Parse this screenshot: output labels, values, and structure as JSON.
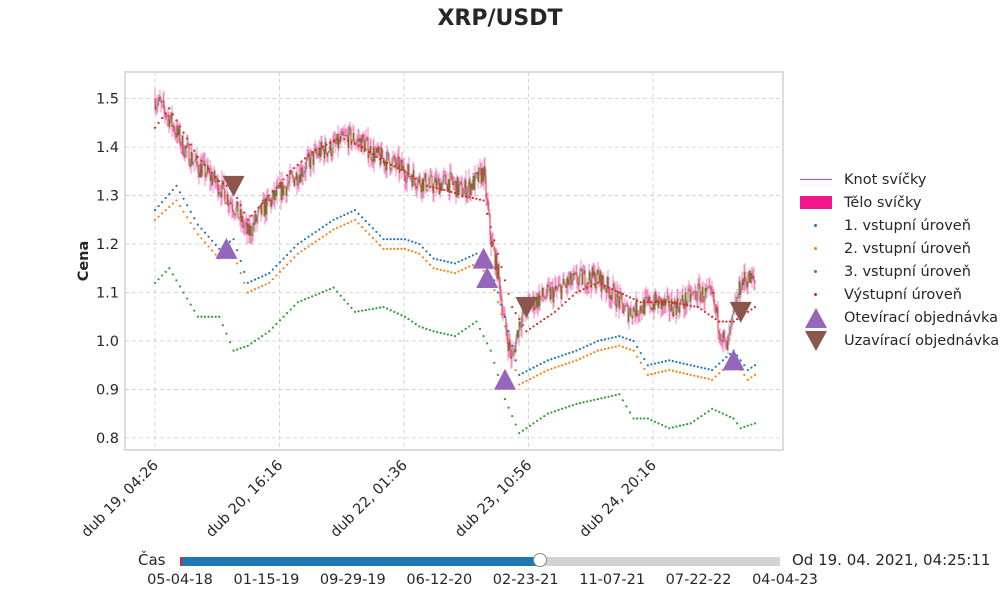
{
  "chart_data": {
    "type": "line",
    "title": "XRP/USDT",
    "ylabel": "Cena",
    "xlabel": "",
    "ylim": [
      0.775,
      1.555
    ],
    "x_tick_labels": [
      "dub 19, 04:26",
      "dub 20, 16:16",
      "dub 22, 01:36",
      "dub 23, 10:56",
      "dub 24, 20:16"
    ],
    "y_ticks": [
      "0.8",
      "0.9",
      "1.0",
      "1.1",
      "1.2",
      "1.3",
      "1.4",
      "1.5"
    ],
    "grid": true,
    "legend_placement": "right",
    "close_anchors": [
      [
        0,
        1.5
      ],
      [
        2,
        1.46
      ],
      [
        4,
        1.4
      ],
      [
        6,
        1.36
      ],
      [
        7,
        1.35
      ],
      [
        9,
        1.32
      ],
      [
        11,
        1.28
      ],
      [
        13,
        1.22
      ],
      [
        15,
        1.27
      ],
      [
        17,
        1.3
      ],
      [
        19,
        1.33
      ],
      [
        21,
        1.36
      ],
      [
        23,
        1.39
      ],
      [
        25,
        1.4
      ],
      [
        27,
        1.42
      ],
      [
        29,
        1.41
      ],
      [
        31,
        1.38
      ],
      [
        33,
        1.37
      ],
      [
        35,
        1.35
      ],
      [
        37,
        1.33
      ],
      [
        39,
        1.32
      ],
      [
        41,
        1.33
      ],
      [
        43,
        1.31
      ],
      [
        45,
        1.33
      ],
      [
        46,
        1.35
      ],
      [
        47,
        1.21
      ],
      [
        48,
        1.14
      ],
      [
        49,
        1.03
      ],
      [
        50,
        0.96
      ],
      [
        51,
        1.04
      ],
      [
        52,
        1.07
      ],
      [
        54,
        1.09
      ],
      [
        56,
        1.1
      ],
      [
        58,
        1.12
      ],
      [
        60,
        1.13
      ],
      [
        62,
        1.13
      ],
      [
        64,
        1.1
      ],
      [
        66,
        1.06
      ],
      [
        68,
        1.07
      ],
      [
        70,
        1.08
      ],
      [
        72,
        1.07
      ],
      [
        74,
        1.08
      ],
      [
        76,
        1.1
      ],
      [
        78,
        1.09
      ],
      [
        79,
        1.03
      ],
      [
        80,
        0.98
      ],
      [
        81,
        1.05
      ],
      [
        82,
        1.12
      ],
      [
        83,
        1.13
      ],
      [
        84,
        1.12
      ]
    ],
    "series": [
      {
        "name": "1. vstupní úroveň",
        "color": "#1f77b4",
        "points": [
          [
            0,
            1.27
          ],
          [
            3,
            1.32
          ],
          [
            6,
            1.24
          ],
          [
            9,
            1.19
          ],
          [
            11,
            1.21
          ],
          [
            13,
            1.12
          ],
          [
            16,
            1.14
          ],
          [
            20,
            1.2
          ],
          [
            25,
            1.25
          ],
          [
            28,
            1.27
          ],
          [
            32,
            1.21
          ],
          [
            35,
            1.21
          ],
          [
            37,
            1.2
          ],
          [
            39,
            1.17
          ],
          [
            42,
            1.16
          ],
          [
            45,
            1.18
          ],
          [
            47,
            1.15
          ],
          [
            49,
            1.05
          ],
          [
            51,
            0.93
          ],
          [
            55,
            0.96
          ],
          [
            59,
            0.98
          ],
          [
            62,
            1.0
          ],
          [
            65,
            1.01
          ],
          [
            67,
            1.0
          ],
          [
            69,
            0.95
          ],
          [
            72,
            0.96
          ],
          [
            75,
            0.95
          ],
          [
            78,
            0.94
          ],
          [
            81,
            0.98
          ],
          [
            83,
            0.94
          ],
          [
            84,
            0.95
          ]
        ]
      },
      {
        "name": "2. vstupní úroveň",
        "color": "#ff7f0e",
        "points": [
          [
            0,
            1.25
          ],
          [
            3,
            1.29
          ],
          [
            6,
            1.22
          ],
          [
            9,
            1.17
          ],
          [
            11,
            1.18
          ],
          [
            13,
            1.1
          ],
          [
            16,
            1.12
          ],
          [
            20,
            1.18
          ],
          [
            25,
            1.23
          ],
          [
            28,
            1.25
          ],
          [
            32,
            1.19
          ],
          [
            35,
            1.19
          ],
          [
            37,
            1.18
          ],
          [
            39,
            1.15
          ],
          [
            42,
            1.14
          ],
          [
            45,
            1.16
          ],
          [
            47,
            1.13
          ],
          [
            49,
            1.03
          ],
          [
            51,
            0.91
          ],
          [
            55,
            0.94
          ],
          [
            59,
            0.96
          ],
          [
            62,
            0.98
          ],
          [
            65,
            0.99
          ],
          [
            67,
            0.98
          ],
          [
            69,
            0.93
          ],
          [
            72,
            0.94
          ],
          [
            75,
            0.93
          ],
          [
            78,
            0.92
          ],
          [
            81,
            0.96
          ],
          [
            83,
            0.92
          ],
          [
            84,
            0.93
          ]
        ]
      },
      {
        "name": "3. vstupní úroveň",
        "color": "#2ca02c",
        "points": [
          [
            0,
            1.12
          ],
          [
            2,
            1.15
          ],
          [
            4,
            1.1
          ],
          [
            6,
            1.05
          ],
          [
            9,
            1.05
          ],
          [
            11,
            0.98
          ],
          [
            13,
            0.99
          ],
          [
            16,
            1.02
          ],
          [
            20,
            1.08
          ],
          [
            25,
            1.11
          ],
          [
            28,
            1.06
          ],
          [
            32,
            1.07
          ],
          [
            35,
            1.05
          ],
          [
            37,
            1.03
          ],
          [
            39,
            1.02
          ],
          [
            42,
            1.01
          ],
          [
            45,
            1.04
          ],
          [
            47,
            0.98
          ],
          [
            49,
            0.88
          ],
          [
            51,
            0.81
          ],
          [
            55,
            0.85
          ],
          [
            59,
            0.87
          ],
          [
            62,
            0.88
          ],
          [
            65,
            0.89
          ],
          [
            67,
            0.84
          ],
          [
            69,
            0.84
          ],
          [
            72,
            0.82
          ],
          [
            75,
            0.83
          ],
          [
            78,
            0.86
          ],
          [
            81,
            0.84
          ],
          [
            82,
            0.82
          ],
          [
            84,
            0.83
          ]
        ]
      },
      {
        "name": "Výstupní úroveň",
        "color": "#d62728",
        "points": [
          [
            0,
            1.44
          ],
          [
            2,
            1.48
          ],
          [
            4,
            1.43
          ],
          [
            6,
            1.38
          ],
          [
            9,
            1.33
          ],
          [
            11,
            1.31
          ],
          [
            13,
            1.25
          ],
          [
            16,
            1.3
          ],
          [
            19,
            1.35
          ],
          [
            22,
            1.39
          ],
          [
            26,
            1.42
          ],
          [
            29,
            1.4
          ],
          [
            32,
            1.37
          ],
          [
            35,
            1.35
          ],
          [
            38,
            1.32
          ],
          [
            41,
            1.31
          ],
          [
            43,
            1.3
          ],
          [
            46,
            1.29
          ],
          [
            48,
            1.18
          ],
          [
            50,
            1.07
          ],
          [
            52,
            1.02
          ],
          [
            56,
            1.06
          ],
          [
            59,
            1.1
          ],
          [
            62,
            1.12
          ],
          [
            65,
            1.1
          ],
          [
            68,
            1.08
          ],
          [
            72,
            1.08
          ],
          [
            76,
            1.07
          ],
          [
            79,
            1.04
          ],
          [
            81,
            1.04
          ],
          [
            83,
            1.06
          ],
          [
            84,
            1.07
          ]
        ]
      }
    ],
    "open_orders": [
      [
        10,
        1.19
      ],
      [
        46,
        1.17
      ],
      [
        46.5,
        1.13
      ],
      [
        49,
        0.92
      ],
      [
        81,
        0.96
      ]
    ],
    "close_orders": [
      [
        11,
        1.32
      ],
      [
        52,
        1.07
      ],
      [
        82,
        1.06
      ]
    ],
    "legend": [
      "Knot svíčky",
      "Tělo svíčky",
      "1. vstupní úroveň",
      "2. vstupní úroveň",
      "3. vstupní úroveň",
      "Výstupní úroveň",
      "Otevírací objednávka",
      "Uzavírací objednávka"
    ],
    "colors": {
      "wick": "#e6409a",
      "body_up": "#2ca02c",
      "body_down": "#d62728",
      "body_legend": "#f0198c",
      "open_marker": "#9467bd",
      "close_marker": "#8c564b"
    }
  },
  "slider": {
    "label": "Čas",
    "value_text": "Od 19. 04. 2021, 04:25:11",
    "fraction": 0.6,
    "tick_labels": [
      "05-04-18",
      "01-15-19",
      "09-29-19",
      "06-12-20",
      "02-23-21",
      "11-07-21",
      "07-22-22",
      "04-04-23"
    ]
  }
}
